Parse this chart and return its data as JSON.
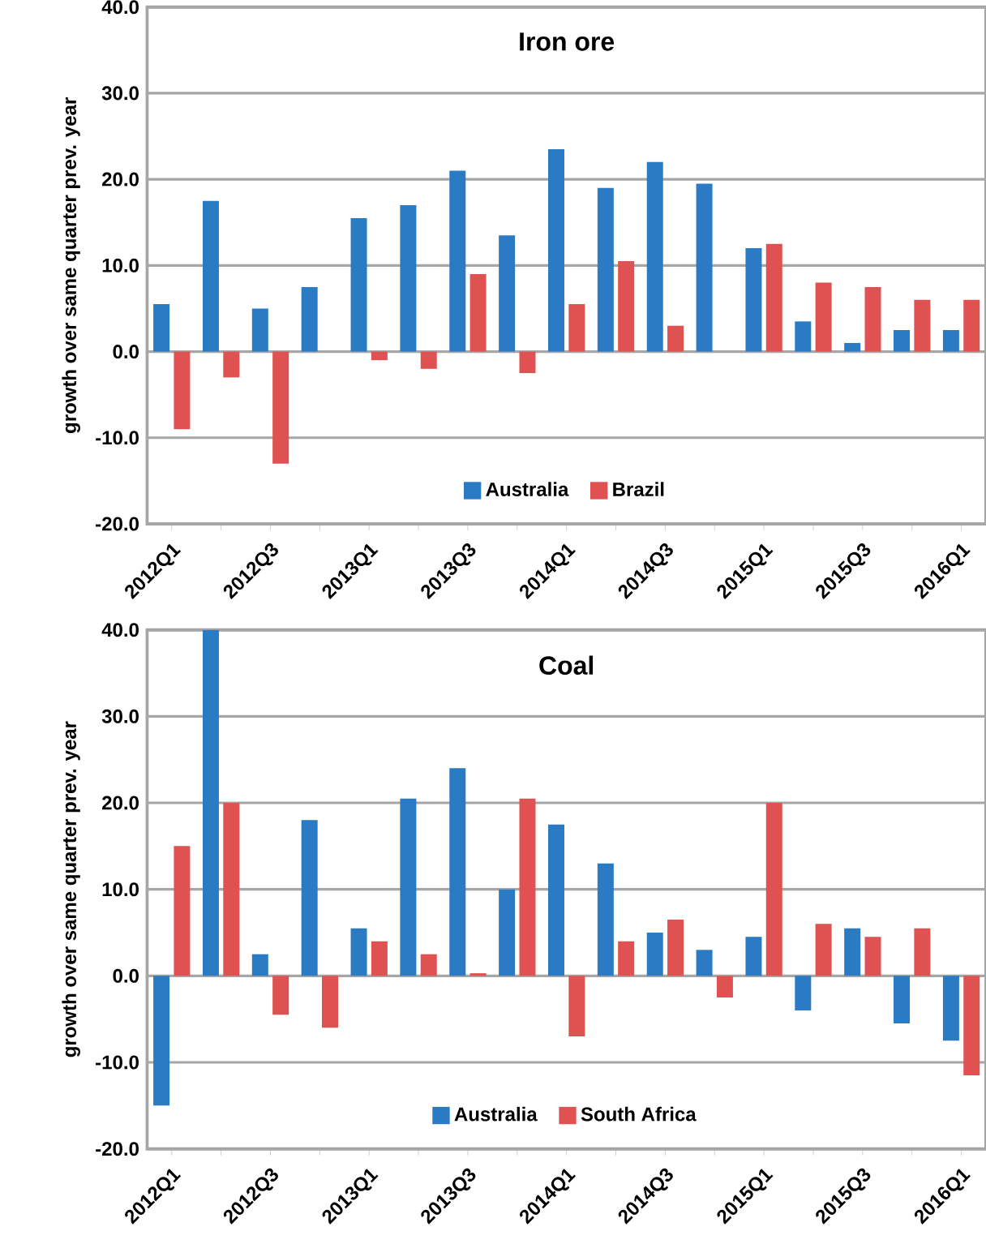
{
  "chart_data": [
    {
      "type": "bar",
      "title": "Iron ore",
      "ylabel": "growth over same quarter prev. year",
      "categories": [
        "2012Q1",
        null,
        "2012Q3",
        null,
        "2013Q1",
        null,
        "2013Q3",
        null,
        "2014Q1",
        null,
        "2014Q3",
        null,
        "2015Q1",
        null,
        "2015Q3",
        null,
        "2016Q1"
      ],
      "series": [
        {
          "name": "Australia",
          "color": "#2b7bc4",
          "values": [
            5.5,
            17.5,
            5,
            7.5,
            15.5,
            17,
            21,
            13.5,
            23.5,
            19,
            22,
            19.5,
            12,
            3.5,
            1,
            2.5,
            2.5
          ]
        },
        {
          "name": "Brazil",
          "color": "#e05252",
          "values": [
            -9,
            -3,
            -13,
            0,
            -1,
            -2,
            9,
            -2.5,
            5.5,
            10.5,
            3,
            0,
            12.5,
            8,
            7.5,
            6,
            6
          ]
        }
      ],
      "ylim": [
        -20,
        40
      ],
      "yticks": [
        {
          "value": -20,
          "label": "-20.0"
        },
        {
          "value": -10,
          "label": "-10.0"
        },
        {
          "value": 0,
          "label": "0.0"
        },
        {
          "value": 10,
          "label": "10.0"
        },
        {
          "value": 20,
          "label": "20.0"
        },
        {
          "value": 30,
          "label": "30.0"
        },
        {
          "value": 40,
          "label": "40.0"
        }
      ],
      "grid": "y",
      "legend": "bottom"
    },
    {
      "type": "bar",
      "title": "Coal",
      "ylabel": "growth over same quarter prev. year",
      "categories": [
        "2012Q1",
        null,
        "2012Q3",
        null,
        "2013Q1",
        null,
        "2013Q3",
        null,
        "2014Q1",
        null,
        "2014Q3",
        null,
        "2015Q1",
        null,
        "2015Q3",
        null,
        "2016Q1"
      ],
      "series": [
        {
          "name": "Australia",
          "color": "#2b7bc4",
          "values": [
            -15,
            40,
            2.5,
            18,
            5.5,
            20.5,
            24,
            10,
            17.5,
            13,
            5,
            3,
            4.5,
            -4,
            5.5,
            -5.5,
            -7.5
          ]
        },
        {
          "name": "South Africa",
          "color": "#e05252",
          "values": [
            15,
            20,
            -4.5,
            -6,
            4,
            2.5,
            0.3,
            20.5,
            -7,
            4,
            6.5,
            -2.5,
            20,
            6,
            4.5,
            5.5,
            -11.5
          ]
        }
      ],
      "ylim": [
        -20,
        40
      ],
      "yticks": [
        {
          "value": -20,
          "label": "-20.0"
        },
        {
          "value": -10,
          "label": "-10.0"
        },
        {
          "value": 0,
          "label": "0.0"
        },
        {
          "value": 10,
          "label": "10.0"
        },
        {
          "value": 20,
          "label": "20.0"
        },
        {
          "value": 30,
          "label": "30.0"
        },
        {
          "value": 40,
          "label": "40.0"
        }
      ],
      "grid": "y",
      "legend": "bottom"
    }
  ]
}
